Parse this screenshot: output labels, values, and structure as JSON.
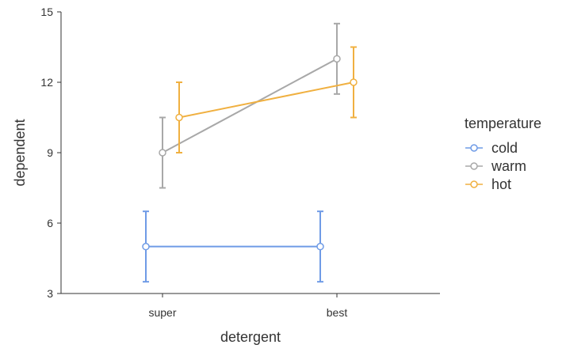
{
  "chart_data": {
    "type": "line",
    "xlabel": "detergent",
    "ylabel": "dependent",
    "categories": [
      "super",
      "best"
    ],
    "ylim": [
      3,
      15
    ],
    "yticks": [
      3,
      6,
      9,
      12,
      15
    ],
    "legend": {
      "title": "temperature",
      "placement": "right"
    },
    "grid": false,
    "series": [
      {
        "name": "cold",
        "color": "#6f9be6",
        "values": [
          5.0,
          5.0
        ],
        "lower": [
          3.5,
          3.5
        ],
        "upper": [
          6.5,
          6.5
        ]
      },
      {
        "name": "warm",
        "color": "#a8a8a8",
        "values": [
          9.0,
          13.0
        ],
        "lower": [
          7.5,
          11.5
        ],
        "upper": [
          10.5,
          14.5
        ]
      },
      {
        "name": "hot",
        "color": "#f0b040",
        "values": [
          10.5,
          12.0
        ],
        "lower": [
          9.0,
          10.5
        ],
        "upper": [
          12.0,
          13.5
        ]
      }
    ]
  }
}
